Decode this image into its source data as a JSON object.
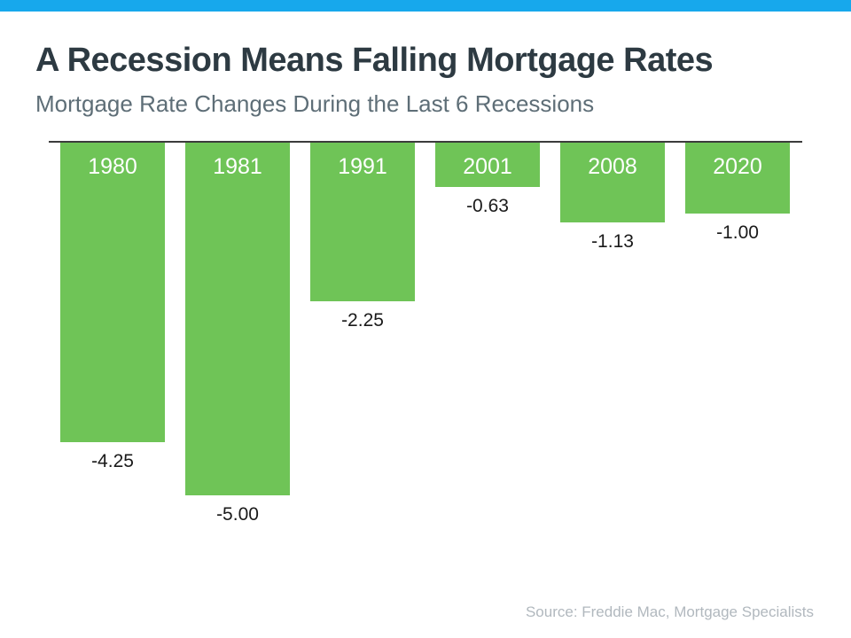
{
  "page": {
    "accent_bar_color": "#17a8ec",
    "title": "A Recession Means Falling Mortgage Rates",
    "subtitle": "Mortgage Rate Changes During the Last 6 Recessions",
    "source": "Source: Freddie Mac, Mortgage Specialists"
  },
  "chart_data": {
    "type": "bar",
    "orientation": "vertical-downward",
    "title": "A Recession Means Falling Mortgage Rates",
    "subtitle": "Mortgage Rate Changes During the Last 6 Recessions",
    "categories": [
      "1980",
      "1981",
      "1991",
      "2001",
      "2008",
      "2020"
    ],
    "values": [
      -4.25,
      -5.0,
      -2.25,
      -0.63,
      -1.13,
      -1.0
    ],
    "data_labels": [
      "-4.25",
      "-5.00",
      "-2.25",
      "-0.63",
      "-1.13",
      "-1.00"
    ],
    "xlabel": "",
    "ylabel": "",
    "ylim": [
      -5.0,
      0
    ],
    "baseline_value": 0,
    "grid": false,
    "legend_position": "none",
    "bar_color": "#6fc457",
    "category_label_color": "#ffffff",
    "value_label_color": "#1a1a1a",
    "axis_line_color": "#3b3b3b",
    "source": "Source: Freddie Mac, Mortgage Specialists"
  }
}
